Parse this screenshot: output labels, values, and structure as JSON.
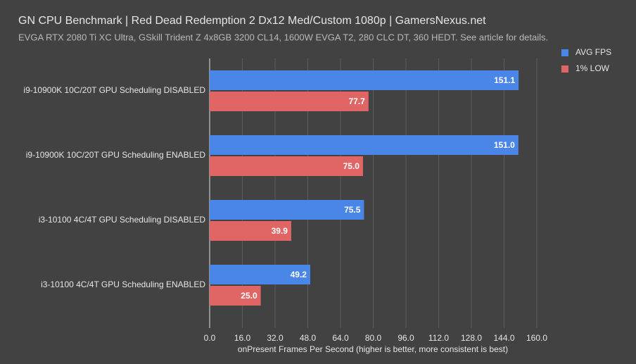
{
  "chart_data": {
    "type": "hbar",
    "title": "GN CPU Benchmark | Red Dead Redemption 2 Dx12 Med/Custom 1080p | GamersNexus.net",
    "subtitle": "EVGA RTX 2080 Ti XC Ultra, GSkill Trident Z 4x8GB 3200 CL14, 1600W EVGA T2, 280 CLC DT, 360 HEDT. See article for details.",
    "x_label": "onPresent Frames Per Second (higher is better, more consistent is best)",
    "categories": [
      "i9-10900K 10C/20T GPU Scheduling DISABLED",
      "i9-10900K 10C/20T GPU Scheduling ENABLED",
      "i3-10100 4C/4T GPU Scheduling DISABLED",
      "i3-10100 4C/4T GPU Scheduling ENABLED"
    ],
    "series": [
      {
        "name": "AVG FPS",
        "color": "#4a86e8",
        "values": [
          151.1,
          151.0,
          75.5,
          49.2
        ],
        "value_labels": [
          "151.1",
          "151.0",
          "75.5",
          "49.2"
        ]
      },
      {
        "name": "1% LOW",
        "color": "#e06666",
        "values": [
          77.7,
          75.0,
          39.9,
          25.0
        ],
        "value_labels": [
          "77.7",
          "75.0",
          "39.9",
          "25.0"
        ]
      }
    ],
    "xlim": [
      0,
      160
    ],
    "xticks": [
      {
        "value": 0,
        "label": "0.0"
      },
      {
        "value": 16,
        "label": "16.0"
      },
      {
        "value": 32,
        "label": "32.0"
      },
      {
        "value": 48,
        "label": "48.0"
      },
      {
        "value": 64,
        "label": "64.0"
      },
      {
        "value": 80,
        "label": "80.0"
      },
      {
        "value": 96,
        "label": "96.0"
      },
      {
        "value": 112,
        "label": "112.0"
      },
      {
        "value": 128,
        "label": "128.0"
      },
      {
        "value": 144,
        "label": "144.0"
      },
      {
        "value": 160,
        "label": "160.0"
      }
    ],
    "grid": true,
    "legend": "top-right"
  }
}
